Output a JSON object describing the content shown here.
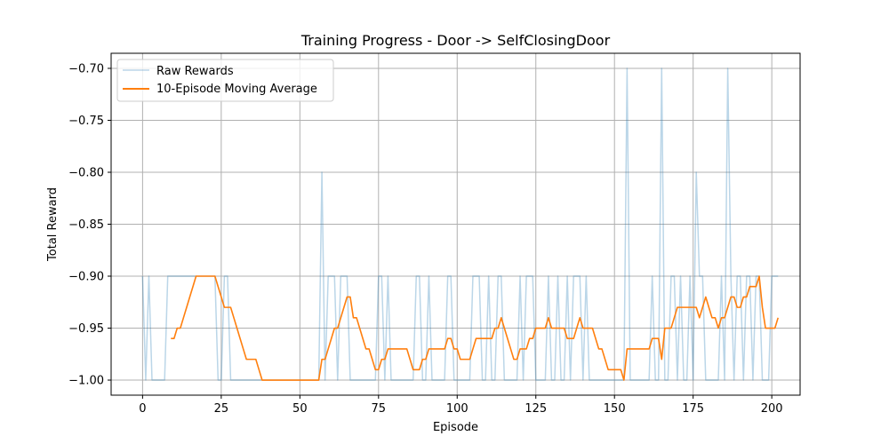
{
  "chart_data": {
    "type": "line",
    "title": "Training Progress - Door -> SelfClosingDoor",
    "xlabel": "Episode",
    "ylabel": "Total Reward",
    "xlim": [
      -10,
      209
    ],
    "ylim": [
      -1.0145,
      -0.6855
    ],
    "xticks": [
      0,
      25,
      50,
      75,
      100,
      125,
      150,
      175,
      200
    ],
    "yticks": [
      -1.0,
      -0.95,
      -0.9,
      -0.85,
      -0.8,
      -0.75,
      -0.7
    ],
    "ytick_labels": [
      "−1.00",
      "−0.95",
      "−0.90",
      "−0.85",
      "−0.80",
      "−0.75",
      "−0.70"
    ],
    "grid": true,
    "legend_position": "top-left",
    "colors": {
      "raw": "#1f77b4",
      "avg": "#ff7f0e",
      "grid": "#b0b0b0"
    },
    "series": [
      {
        "name": "Raw Rewards",
        "x_start": 0,
        "values": [
          -0.9,
          -1.0,
          -0.9,
          -1.0,
          -1.0,
          -1.0,
          -1.0,
          -1.0,
          -0.9,
          -0.9,
          -0.9,
          -0.9,
          -0.9,
          -0.9,
          -0.9,
          -0.9,
          -0.9,
          -0.9,
          -0.9,
          -0.9,
          -0.9,
          -0.9,
          -0.9,
          -0.9,
          -1.0,
          -1.0,
          -0.9,
          -0.9,
          -1.0,
          -1.0,
          -1.0,
          -1.0,
          -1.0,
          -1.0,
          -1.0,
          -1.0,
          -1.0,
          -1.0,
          -1.0,
          -1.0,
          -1.0,
          -1.0,
          -1.0,
          -1.0,
          -1.0,
          -1.0,
          -1.0,
          -1.0,
          -1.0,
          -1.0,
          -1.0,
          -1.0,
          -1.0,
          -1.0,
          -1.0,
          -1.0,
          -1.0,
          -0.8,
          -1.0,
          -0.9,
          -0.9,
          -0.9,
          -1.0,
          -0.9,
          -0.9,
          -0.9,
          -1.0,
          -1.0,
          -1.0,
          -1.0,
          -1.0,
          -1.0,
          -1.0,
          -1.0,
          -1.0,
          -0.9,
          -0.9,
          -1.0,
          -0.9,
          -1.0,
          -1.0,
          -1.0,
          -1.0,
          -1.0,
          -1.0,
          -1.0,
          -1.0,
          -0.9,
          -0.9,
          -1.0,
          -1.0,
          -0.9,
          -1.0,
          -1.0,
          -1.0,
          -1.0,
          -1.0,
          -0.9,
          -0.9,
          -1.0,
          -1.0,
          -1.0,
          -1.0,
          -1.0,
          -1.0,
          -0.9,
          -0.9,
          -0.9,
          -1.0,
          -1.0,
          -0.9,
          -1.0,
          -1.0,
          -0.9,
          -0.9,
          -1.0,
          -1.0,
          -1.0,
          -1.0,
          -1.0,
          -0.9,
          -1.0,
          -0.9,
          -0.9,
          -0.9,
          -1.0,
          -1.0,
          -1.0,
          -1.0,
          -0.9,
          -1.0,
          -1.0,
          -0.9,
          -1.0,
          -1.0,
          -0.9,
          -1.0,
          -0.9,
          -0.9,
          -0.9,
          -1.0,
          -0.9,
          -1.0,
          -1.0,
          -1.0,
          -1.0,
          -1.0,
          -1.0,
          -1.0,
          -1.0,
          -1.0,
          -1.0,
          -1.0,
          -1.0,
          -0.7,
          -1.0,
          -1.0,
          -1.0,
          -1.0,
          -1.0,
          -1.0,
          -1.0,
          -0.9,
          -1.0,
          -1.0,
          -0.7,
          -1.0,
          -1.0,
          -0.9,
          -0.9,
          -1.0,
          -0.9,
          -1.0,
          -1.0,
          -0.9,
          -1.0,
          -0.8,
          -0.9,
          -0.9,
          -1.0,
          -1.0,
          -1.0,
          -1.0,
          -1.0,
          -0.9,
          -1.0,
          -0.7,
          -0.9,
          -1.0,
          -0.9,
          -0.9,
          -1.0,
          -0.9,
          -0.9,
          -1.0,
          -0.9,
          -0.9,
          -1.0,
          -1.0,
          -1.0,
          -0.9,
          -0.9,
          -0.9
        ]
      },
      {
        "name": "10-Episode Moving Average",
        "x_start": 9,
        "values": [
          -0.96,
          -0.96,
          -0.95,
          -0.95,
          -0.94,
          -0.93,
          -0.92,
          -0.91,
          -0.9,
          -0.9,
          -0.9,
          -0.9,
          -0.9,
          -0.9,
          -0.9,
          -0.91,
          -0.92,
          -0.93,
          -0.93,
          -0.93,
          -0.94,
          -0.95,
          -0.96,
          -0.97,
          -0.98,
          -0.98,
          -0.98,
          -0.98,
          -0.99,
          -1.0,
          -1.0,
          -1.0,
          -1.0,
          -1.0,
          -1.0,
          -1.0,
          -1.0,
          -1.0,
          -1.0,
          -1.0,
          -1.0,
          -1.0,
          -1.0,
          -1.0,
          -1.0,
          -1.0,
          -1.0,
          -1.0,
          -0.98,
          -0.98,
          -0.97,
          -0.96,
          -0.95,
          -0.95,
          -0.94,
          -0.93,
          -0.92,
          -0.92,
          -0.94,
          -0.94,
          -0.95,
          -0.96,
          -0.97,
          -0.97,
          -0.98,
          -0.99,
          -0.99,
          -0.98,
          -0.98,
          -0.97,
          -0.97,
          -0.97,
          -0.97,
          -0.97,
          -0.97,
          -0.97,
          -0.98,
          -0.99,
          -0.99,
          -0.99,
          -0.98,
          -0.98,
          -0.97,
          -0.97,
          -0.97,
          -0.97,
          -0.97,
          -0.97,
          -0.96,
          -0.96,
          -0.97,
          -0.97,
          -0.98,
          -0.98,
          -0.98,
          -0.98,
          -0.97,
          -0.96,
          -0.96,
          -0.96,
          -0.96,
          -0.96,
          -0.96,
          -0.95,
          -0.95,
          -0.94,
          -0.95,
          -0.96,
          -0.97,
          -0.98,
          -0.98,
          -0.97,
          -0.97,
          -0.97,
          -0.96,
          -0.96,
          -0.95,
          -0.95,
          -0.95,
          -0.95,
          -0.94,
          -0.95,
          -0.95,
          -0.95,
          -0.95,
          -0.95,
          -0.96,
          -0.96,
          -0.96,
          -0.95,
          -0.94,
          -0.95,
          -0.95,
          -0.95,
          -0.95,
          -0.96,
          -0.97,
          -0.97,
          -0.98,
          -0.99,
          -0.99,
          -0.99,
          -0.99,
          -0.99,
          -1.0,
          -0.97,
          -0.97,
          -0.97,
          -0.97,
          -0.97,
          -0.97,
          -0.97,
          -0.97,
          -0.96,
          -0.96,
          -0.96,
          -0.98,
          -0.95,
          -0.95,
          -0.95,
          -0.94,
          -0.93,
          -0.93,
          -0.93,
          -0.93,
          -0.93,
          -0.93,
          -0.93,
          -0.94,
          -0.93,
          -0.92,
          -0.93,
          -0.94,
          -0.94,
          -0.95,
          -0.94,
          -0.94,
          -0.93,
          -0.92,
          -0.92,
          -0.93,
          -0.93,
          -0.92,
          -0.92,
          -0.91,
          -0.91,
          -0.91,
          -0.9,
          -0.93,
          -0.95,
          -0.95,
          -0.95,
          -0.95,
          -0.94
        ]
      }
    ]
  }
}
